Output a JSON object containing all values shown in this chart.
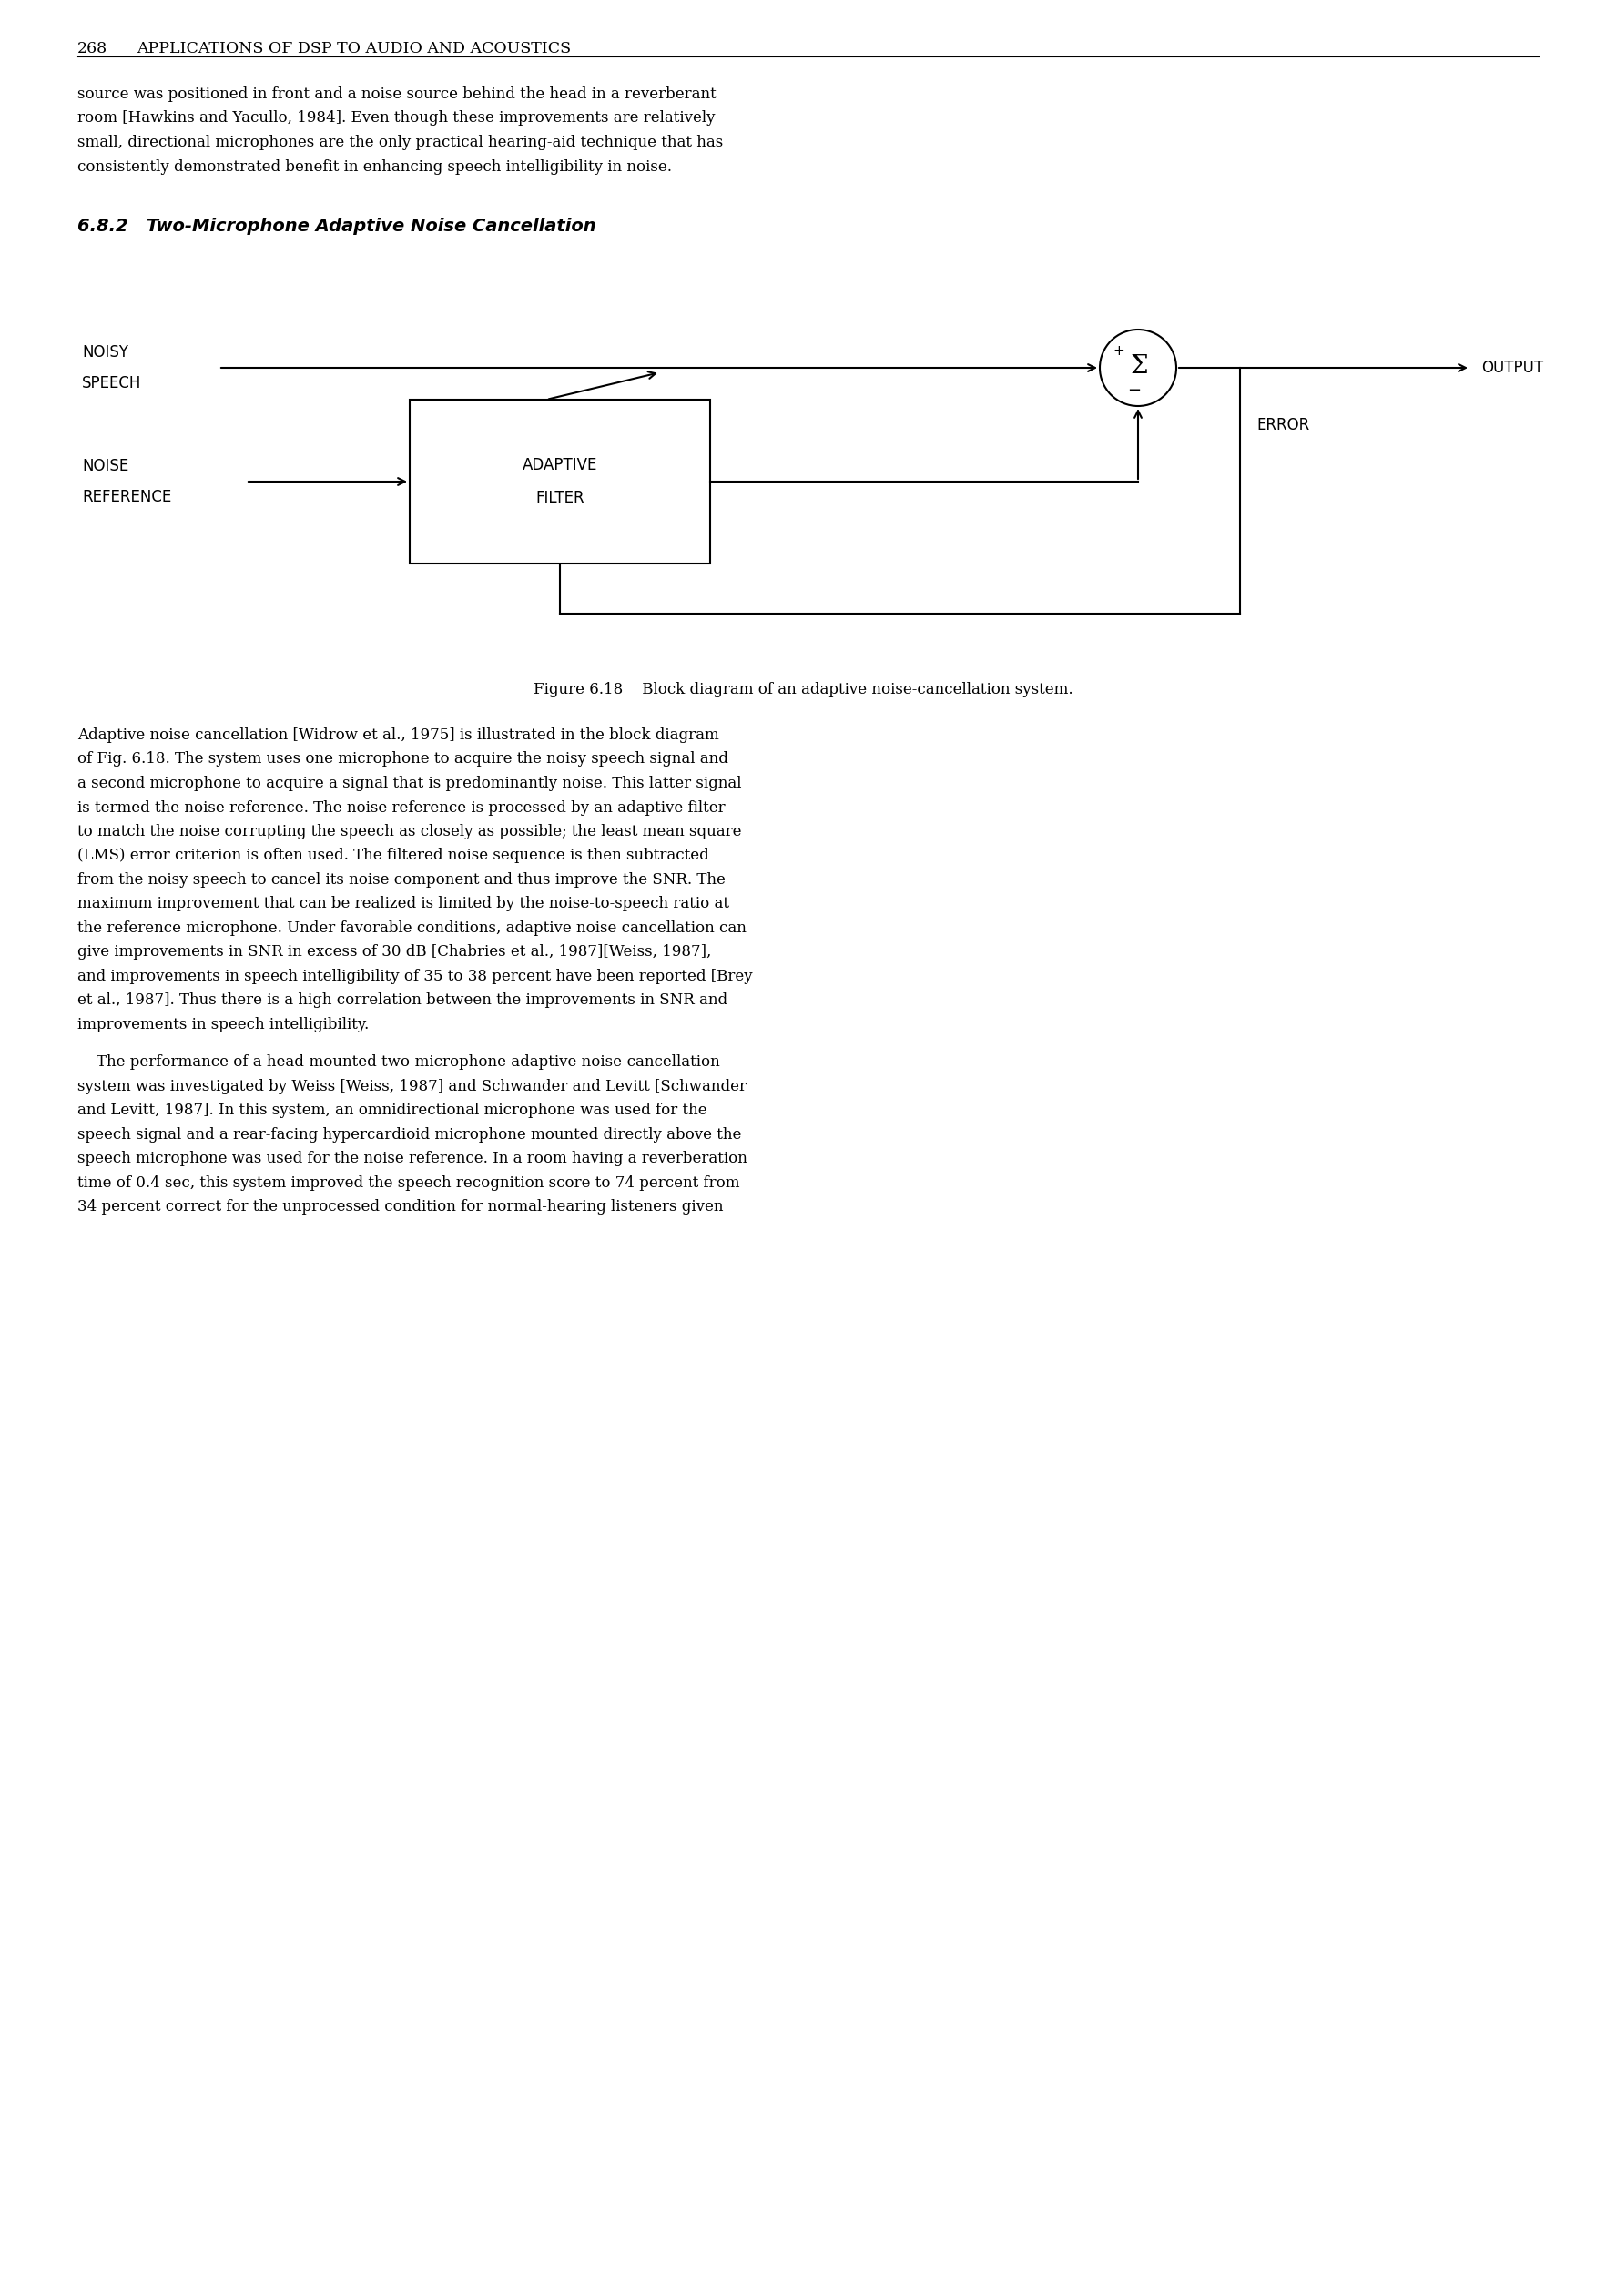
{
  "background_color": "#ffffff",
  "page_width": 17.65,
  "page_height": 25.12,
  "header_text_num": "268",
  "header_text_title": "APPLICATIONS OF DSP TO AUDIO AND ACOUSTICS",
  "header_fontsize": 12.5,
  "section_title": "6.8.2   Two-Microphone Adaptive Noise Cancellation",
  "section_fontsize": 14,
  "figure_caption": "Figure 6.18    Block diagram of an adaptive noise-cancellation system.",
  "caption_fontsize": 12,
  "body_text_lines": [
    "source was positioned in front and a noise source behind the head in a reverberant",
    "room [Hawkins and Yacullo, 1984]. Even though these improvements are relatively",
    "small, directional microphones are the only practical hearing-aid technique that has",
    "consistently demonstrated benefit in enhancing speech intelligibility in noise."
  ],
  "body_text2_lines": [
    "Adaptive noise cancellation [Widrow et al., 1975] is illustrated in the block diagram",
    "of Fig. 6.18. The system uses one microphone to acquire the noisy speech signal and",
    "a second microphone to acquire a signal that is predominantly noise. This latter signal",
    "is termed the noise reference. The noise reference is processed by an adaptive filter",
    "to match the noise corrupting the speech as closely as possible; the least mean square",
    "(LMS) error criterion is often used. The filtered noise sequence is then subtracted",
    "from the noisy speech to cancel its noise component and thus improve the SNR. The",
    "maximum improvement that can be realized is limited by the noise-to-speech ratio at",
    "the reference microphone. Under favorable conditions, adaptive noise cancellation can",
    "give improvements in SNR in excess of 30 dB [Chabries et al., 1987][Weiss, 1987],",
    "and improvements in speech intelligibility of 35 to 38 percent have been reported [Brey",
    "et al., 1987]. Thus there is a high correlation between the improvements in SNR and",
    "improvements in speech intelligibility."
  ],
  "body_text3_lines": [
    "    The performance of a head-mounted two-microphone adaptive noise-cancellation",
    "system was investigated by Weiss [Weiss, 1987] and Schwander and Levitt [Schwander",
    "and Levitt, 1987]. In this system, an omnidirectional microphone was used for the",
    "speech signal and a rear-facing hypercardioid microphone mounted directly above the",
    "speech microphone was used for the noise reference. In a room having a reverberation",
    "time of 0.4 sec, this system improved the speech recognition score to 74 percent from",
    "34 percent correct for the unprocessed condition for normal-hearing listeners given"
  ],
  "diagram": {
    "noisy_speech_label_1": "NOISY",
    "noisy_speech_label_2": "SPEECH",
    "noise_ref_label_1": "NOISE",
    "noise_ref_label_2": "REFERENCE",
    "adaptive_filter_label_1": "ADAPTIVE",
    "adaptive_filter_label_2": "FILTER",
    "output_label": "OUTPUT",
    "error_label": "ERROR",
    "plus_label": "+",
    "minus_label": "−",
    "sigma_label": "Σ"
  }
}
